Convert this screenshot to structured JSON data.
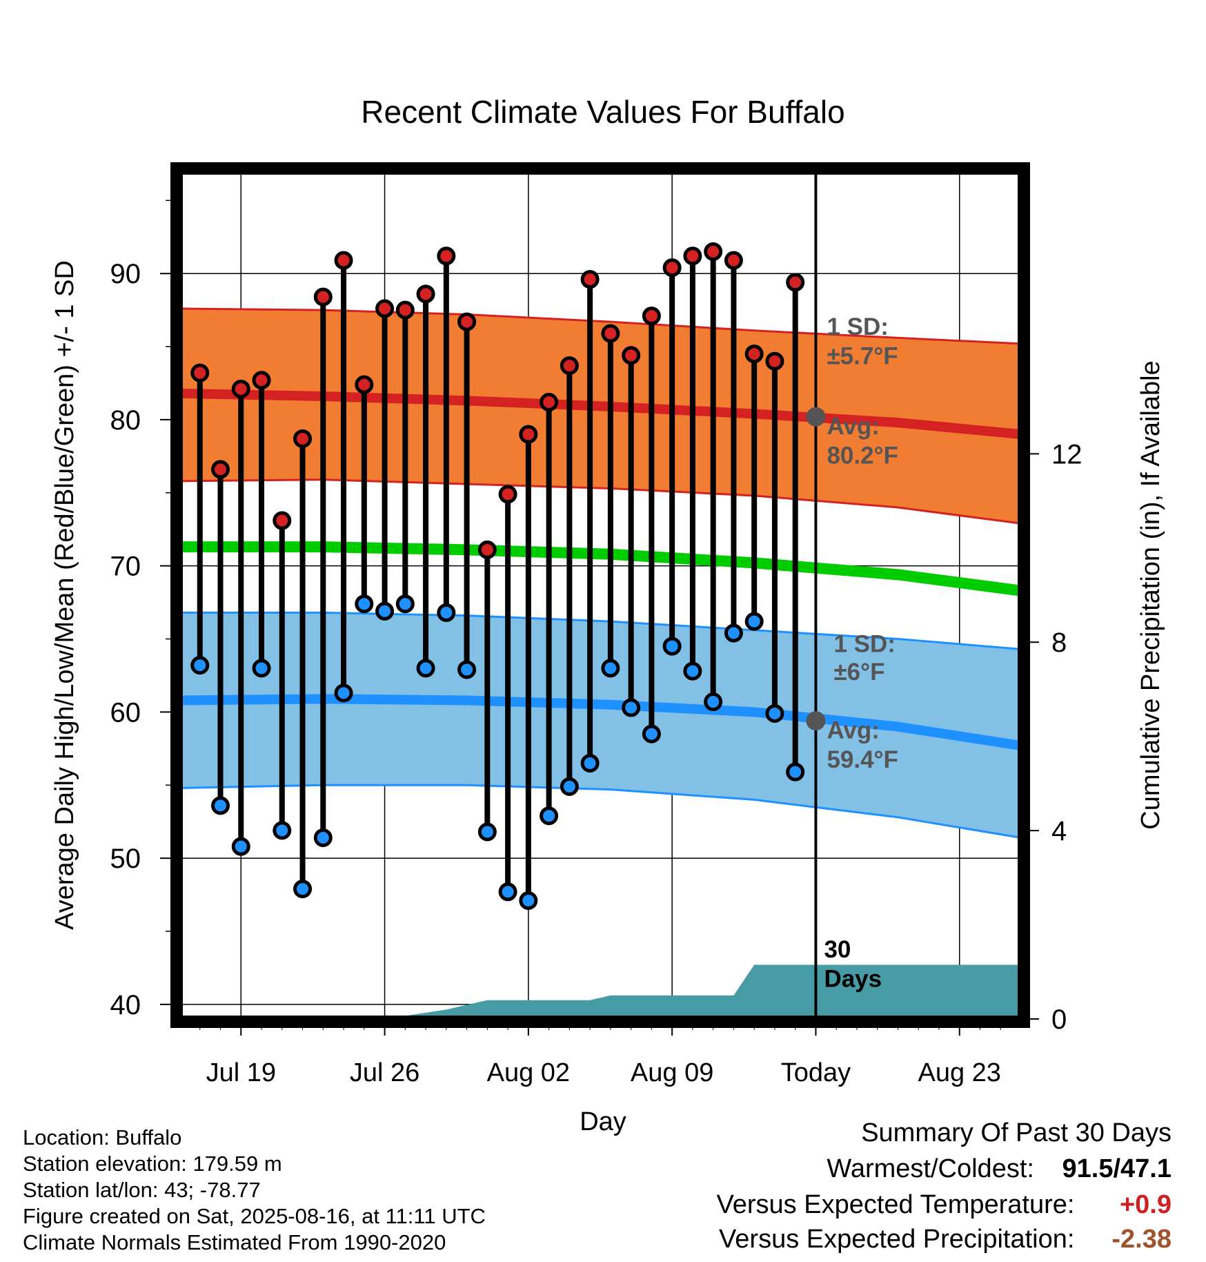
{
  "chart_data": {
    "type": "line",
    "title": "Recent Climate Values For Buffalo",
    "xlabel": "Day",
    "ylabel": "Average Daily High/Low/Mean (Red/Blue/Green) +/- 1 SD",
    "y2label": "Cumulative Precipitation (in), If Available",
    "x_tick_labels": [
      "Jul 19",
      "Jul 26",
      "Aug 02",
      "Aug 09",
      "Today",
      "Aug 23"
    ],
    "x_tick_dates": [
      "2025-07-19",
      "2025-07-26",
      "2025-08-02",
      "2025-08-09",
      "2025-08-16",
      "2025-08-23"
    ],
    "xlim": [
      "2025-07-16",
      "2025-08-26"
    ],
    "ylim": [
      39,
      97
    ],
    "y_ticks": [
      40,
      50,
      60,
      70,
      80,
      90
    ],
    "y2lim": [
      0,
      18
    ],
    "y2_ticks": [
      0,
      4,
      8,
      12
    ],
    "grid": true,
    "today": "2025-08-16",
    "dates": [
      "2025-07-17",
      "2025-07-18",
      "2025-07-19",
      "2025-07-20",
      "2025-07-21",
      "2025-07-22",
      "2025-07-23",
      "2025-07-24",
      "2025-07-25",
      "2025-07-26",
      "2025-07-27",
      "2025-07-28",
      "2025-07-29",
      "2025-07-30",
      "2025-07-31",
      "2025-08-01",
      "2025-08-02",
      "2025-08-03",
      "2025-08-04",
      "2025-08-05",
      "2025-08-06",
      "2025-08-07",
      "2025-08-08",
      "2025-08-09",
      "2025-08-10",
      "2025-08-11",
      "2025-08-12",
      "2025-08-13",
      "2025-08-14",
      "2025-08-15"
    ],
    "daily_high": [
      83.2,
      76.6,
      82.1,
      82.7,
      73.1,
      78.7,
      88.4,
      90.9,
      82.4,
      87.6,
      87.5,
      88.6,
      91.2,
      86.7,
      71.1,
      74.9,
      79.0,
      81.2,
      83.7,
      89.6,
      85.9,
      84.4,
      87.1,
      90.4,
      91.2,
      91.5,
      90.9,
      84.5,
      84.0,
      89.4
    ],
    "daily_low": [
      63.2,
      53.6,
      50.8,
      63.0,
      51.9,
      47.9,
      51.4,
      61.3,
      67.4,
      66.9,
      67.4,
      63.0,
      66.8,
      62.9,
      51.8,
      47.7,
      47.1,
      52.9,
      54.9,
      56.5,
      63.0,
      60.3,
      58.5,
      64.5,
      62.8,
      60.7,
      65.4,
      66.2,
      59.9,
      55.9
    ],
    "normals": {
      "dates": [
        "2025-07-16",
        "2025-07-23",
        "2025-07-30",
        "2025-08-06",
        "2025-08-13",
        "2025-08-20",
        "2025-08-26"
      ],
      "high_avg": [
        81.8,
        81.6,
        81.3,
        80.9,
        80.4,
        79.8,
        79.0
      ],
      "high_sd_upper": [
        87.6,
        87.5,
        87.2,
        86.7,
        86.1,
        85.6,
        85.2
      ],
      "high_sd_lower": [
        75.8,
        75.9,
        75.6,
        75.3,
        74.8,
        74.0,
        72.9
      ],
      "mean_avg": [
        71.3,
        71.3,
        71.1,
        70.8,
        70.2,
        69.4,
        68.3
      ],
      "low_avg": [
        60.8,
        60.9,
        60.8,
        60.5,
        60.0,
        59.0,
        57.7
      ],
      "low_sd_upper": [
        66.8,
        66.8,
        66.6,
        66.2,
        65.6,
        65.0,
        64.3
      ],
      "low_sd_lower": [
        54.8,
        55.0,
        55.0,
        54.7,
        54.0,
        52.8,
        51.4
      ]
    },
    "precip_cumulative": {
      "dates": [
        "2025-07-16",
        "2025-07-26",
        "2025-07-29",
        "2025-07-31",
        "2025-08-05",
        "2025-08-06",
        "2025-08-12",
        "2025-08-13",
        "2025-08-26"
      ],
      "values": [
        0.0,
        0.0,
        0.2,
        0.4,
        0.4,
        0.5,
        0.5,
        1.15,
        1.15
      ]
    },
    "annotations": {
      "high_sd_label": "1 SD:",
      "high_sd_value": "±5.7°F",
      "high_avg_label": "Avg:",
      "high_avg_value": "80.2°F",
      "low_sd_label": "1 SD:",
      "low_sd_value": "±6°F",
      "low_avg_label": "Avg:",
      "low_avg_value": "59.4°F",
      "days_label_1": "30",
      "days_label_2": "Days"
    },
    "colors": {
      "high_band": "#f07d32",
      "high_line": "#d42222",
      "mean_line": "#00cc00",
      "low_band": "#82c0e6",
      "low_line": "#1e90ff",
      "precip": "#469ba5",
      "high_marker": "#d42222",
      "low_marker": "#1e90ff",
      "annotation_text": "#555555"
    }
  },
  "footer": {
    "location": "Location: Buffalo",
    "elevation": "Station elevation: 179.59 m",
    "latlon": "Station lat/lon: 43; -78.77",
    "created": "Figure created on Sat, 2025-08-16, at 11:11 UTC",
    "normals": "Climate Normals Estimated From 1990-2020"
  },
  "summary": {
    "title": "Summary Of Past 30 Days",
    "warmest_label": "Warmest/Coldest:",
    "warmest_value": "91.5/47.1",
    "temp_label": "Versus Expected Temperature:",
    "temp_value": "+0.9",
    "temp_color": "#cc2222",
    "precip_label": "Versus Expected Precipitation:",
    "precip_value": "-2.38",
    "precip_color": "#a0522d"
  }
}
